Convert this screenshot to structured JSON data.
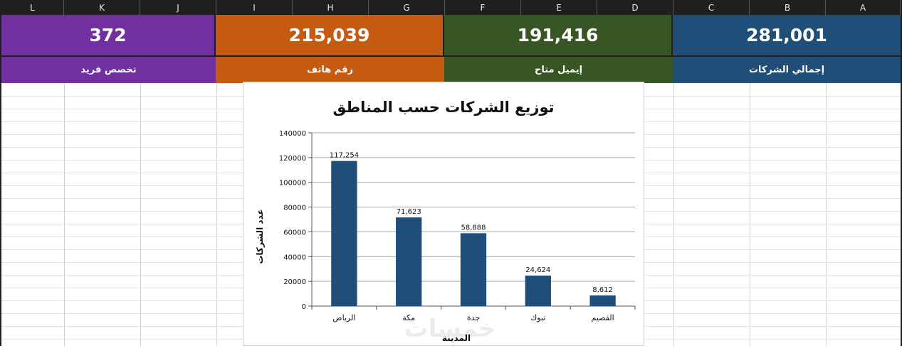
{
  "columns": [
    "L",
    "K",
    "J",
    "I",
    "H",
    "G",
    "F",
    "E",
    "D",
    "C",
    "B",
    "A"
  ],
  "cards": [
    {
      "value": "372",
      "label": "تخصص فريد",
      "color": "#7030a0"
    },
    {
      "value": "215,039",
      "label": "رقم هاتف",
      "color": "#c55a11"
    },
    {
      "value": "191,416",
      "label": "إيميل متاح",
      "color": "#375623"
    },
    {
      "value": "281,001",
      "label": "إجمالي الشركات",
      "color": "#1f4e79"
    }
  ],
  "chart_data": {
    "type": "bar",
    "title": "توزيع الشركات حسب المناطق",
    "xlabel": "المدينة",
    "ylabel": "عدد الشركات",
    "categories": [
      "الرياض",
      "مكة",
      "جدة",
      "تبوك",
      "القصيم"
    ],
    "values": [
      117254,
      71623,
      58888,
      24624,
      8612
    ],
    "data_labels": [
      "117,254",
      "71,623",
      "58,888",
      "24,624",
      "8,612"
    ],
    "ylim": [
      0,
      140000
    ],
    "yticks": [
      "0",
      "20000",
      "40000",
      "60000",
      "80000",
      "100000",
      "120000",
      "140000"
    ],
    "bar_color": "#1f4e79",
    "grid": true
  },
  "watermark": "خمسات"
}
